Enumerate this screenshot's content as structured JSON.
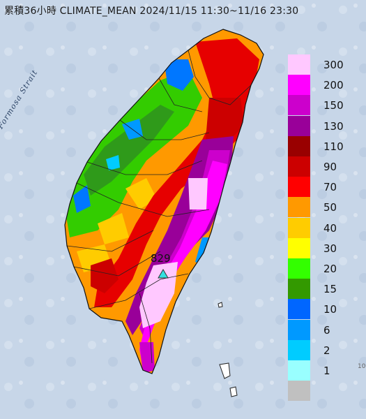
{
  "title": "累積36小時 CLIMATE_MEAN 2024/11/15 11:30~11/16 23:30",
  "map_label": "Formosa Strait",
  "max_station": {
    "value": "829"
  },
  "legend": [
    {
      "label": "300",
      "color": "#ffc8ff"
    },
    {
      "label": "200",
      "color": "#ff00ff"
    },
    {
      "label": "150",
      "color": "#cc00cc"
    },
    {
      "label": "130",
      "color": "#990099"
    },
    {
      "label": "110",
      "color": "#990000"
    },
    {
      "label": "90",
      "color": "#cc0000"
    },
    {
      "label": "70",
      "color": "#ff0000"
    },
    {
      "label": "50",
      "color": "#ff9900"
    },
    {
      "label": "40",
      "color": "#ffcc00"
    },
    {
      "label": "30",
      "color": "#ffff00"
    },
    {
      "label": "20",
      "color": "#33ff00"
    },
    {
      "label": "15",
      "color": "#339900"
    },
    {
      "label": "10",
      "color": "#0066ff"
    },
    {
      "label": "6",
      "color": "#0099ff"
    },
    {
      "label": "2",
      "color": "#00ccff"
    },
    {
      "label": "1",
      "color": "#99ffff"
    },
    {
      "label": "",
      "color": "#c0c0c0"
    }
  ],
  "edge_mark": "10"
}
